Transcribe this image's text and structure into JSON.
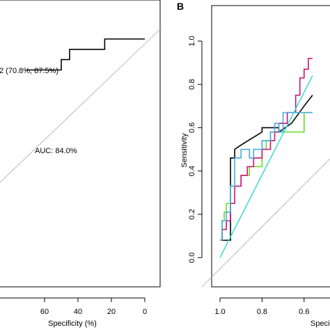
{
  "chart_data": [
    {
      "panel": "A",
      "type": "line",
      "xlabel": "Specificity (%)",
      "ylabel": "",
      "x_direction": "reversed",
      "x_ticks": [
        "60",
        "40",
        "20",
        "0"
      ],
      "annotations": [
        "2 (70.8%, 87.5%)",
        "AUC: 84.0%"
      ],
      "diagonal": true,
      "series": [
        {
          "color": "#000000",
          "x": [
            71,
            50,
            50,
            45,
            45,
            24,
            24,
            0
          ],
          "y": [
            87.5,
            87.5,
            91.7,
            91.7,
            95.8,
            95.8,
            100,
            100
          ]
        }
      ]
    },
    {
      "panel": "B",
      "type": "line",
      "panel_label": "B",
      "xlabel": "Speci",
      "ylabel": "Sensitivity",
      "x_direction": "reversed",
      "xlim": [
        1.0,
        0.55
      ],
      "ylim": [
        0.0,
        1.0
      ],
      "x_ticks": [
        "1.0",
        "0.8",
        "0.6"
      ],
      "y_ticks": [
        "0.0",
        "0.2",
        "0.4",
        "0.6",
        "0.8",
        "1.0"
      ],
      "diagonal": true,
      "series": [
        {
          "color": "#000000",
          "x": [
            1.0,
            0.95,
            0.95,
            0.93,
            0.93,
            0.9,
            0.85,
            0.8,
            0.8,
            0.72,
            0.72,
            0.66,
            0.6,
            0.56
          ],
          "y": [
            0.08,
            0.08,
            0.46,
            0.46,
            0.5,
            0.52,
            0.55,
            0.58,
            0.6,
            0.6,
            0.58,
            0.62,
            0.7,
            0.75
          ]
        },
        {
          "color": "#66dd22",
          "x": [
            1.0,
            0.99,
            0.99,
            0.98,
            0.98,
            0.97,
            0.97,
            0.95,
            0.95,
            0.9,
            0.9,
            0.86,
            0.86,
            0.8,
            0.8,
            0.78,
            0.78,
            0.76,
            0.76,
            0.6,
            0.6,
            0.56
          ],
          "y": [
            0.08,
            0.08,
            0.17,
            0.17,
            0.21,
            0.21,
            0.25,
            0.25,
            0.33,
            0.33,
            0.38,
            0.38,
            0.42,
            0.42,
            0.5,
            0.5,
            0.54,
            0.54,
            0.58,
            0.58,
            0.67,
            0.67
          ]
        },
        {
          "color": "#cc1177",
          "x": [
            1.0,
            0.99,
            0.99,
            0.97,
            0.97,
            0.95,
            0.95,
            0.93,
            0.93,
            0.9,
            0.9,
            0.87,
            0.87,
            0.84,
            0.84,
            0.8,
            0.8,
            0.76,
            0.76,
            0.74,
            0.74,
            0.72,
            0.72,
            0.68,
            0.68,
            0.64,
            0.64,
            0.62,
            0.62,
            0.6,
            0.6,
            0.58,
            0.58,
            0.56
          ],
          "y": [
            0.08,
            0.08,
            0.13,
            0.13,
            0.17,
            0.17,
            0.25,
            0.25,
            0.33,
            0.33,
            0.38,
            0.38,
            0.42,
            0.42,
            0.46,
            0.46,
            0.5,
            0.5,
            0.54,
            0.54,
            0.58,
            0.58,
            0.62,
            0.62,
            0.67,
            0.67,
            0.75,
            0.75,
            0.83,
            0.83,
            0.87,
            0.87,
            0.92,
            0.92
          ]
        },
        {
          "color": "#44aadd",
          "x": [
            1.0,
            0.99,
            0.99,
            0.97,
            0.97,
            0.95,
            0.95,
            0.93,
            0.93,
            0.9,
            0.9,
            0.86,
            0.86,
            0.84,
            0.84,
            0.8,
            0.8,
            0.76,
            0.76,
            0.74,
            0.74,
            0.72,
            0.72,
            0.7,
            0.7,
            0.65,
            0.65,
            0.56
          ],
          "y": [
            0.08,
            0.08,
            0.17,
            0.17,
            0.21,
            0.21,
            0.33,
            0.33,
            0.46,
            0.46,
            0.5,
            0.5,
            0.46,
            0.46,
            0.5,
            0.5,
            0.54,
            0.54,
            0.58,
            0.58,
            0.62,
            0.62,
            0.58,
            0.58,
            0.67,
            0.67,
            0.67,
            0.67
          ]
        },
        {
          "color": "#44ddcc",
          "x": [
            1.0,
            0.56
          ],
          "y": [
            0.0,
            0.84
          ]
        }
      ]
    }
  ]
}
